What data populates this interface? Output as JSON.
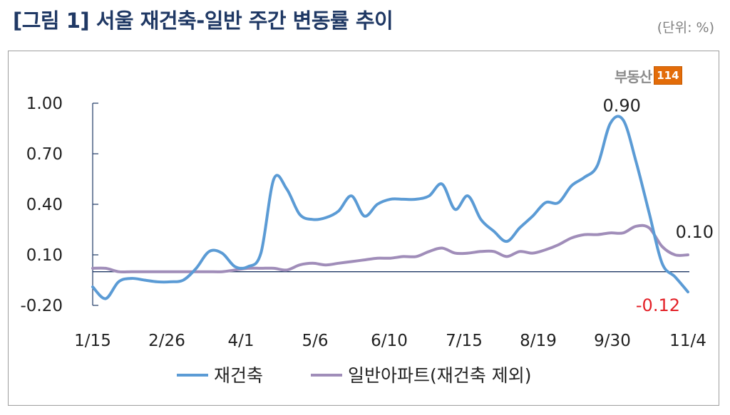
{
  "header": {
    "title": "[그림 1] 서울 재건축-일반 주간 변동률 추이",
    "unit": "(단위: %)"
  },
  "logo": {
    "text": "부동산",
    "number": "114"
  },
  "chart_data": {
    "type": "line",
    "ylim": [
      -0.2,
      1.0
    ],
    "y_ticks": [
      1.0,
      0.7,
      0.4,
      0.1,
      -0.2
    ],
    "y_tick_labels": [
      "1.00",
      "0.70",
      "0.40",
      "0.10",
      "-0.20"
    ],
    "x_tick_labels": [
      "1/15",
      "2/26",
      "4/1",
      "5/6",
      "6/10",
      "7/15",
      "8/19",
      "9/30",
      "11/4"
    ],
    "zero_line": 0,
    "legend_position": "bottom",
    "colors": {
      "rebuild": "#5b9bd5",
      "general": "#a08db9",
      "negative_label": "#e31f26",
      "axis": "#1f3864"
    },
    "series": [
      {
        "name": "재건축",
        "values": [
          -0.09,
          -0.16,
          -0.06,
          -0.04,
          -0.05,
          -0.06,
          -0.06,
          -0.05,
          0.02,
          0.12,
          0.11,
          0.03,
          0.03,
          0.11,
          0.55,
          0.49,
          0.34,
          0.31,
          0.32,
          0.36,
          0.45,
          0.33,
          0.4,
          0.43,
          0.43,
          0.43,
          0.45,
          0.52,
          0.37,
          0.45,
          0.31,
          0.24,
          0.18,
          0.26,
          0.33,
          0.41,
          0.41,
          0.51,
          0.56,
          0.63,
          0.88,
          0.9,
          0.65,
          0.35,
          0.05,
          -0.03,
          -0.12
        ]
      },
      {
        "name": "일반아파트(재건축 제외)",
        "values": [
          0.02,
          0.02,
          0.0,
          0.0,
          0.0,
          0.0,
          0.0,
          0.0,
          0.0,
          0.0,
          0.0,
          0.01,
          0.02,
          0.02,
          0.02,
          0.01,
          0.04,
          0.05,
          0.04,
          0.05,
          0.06,
          0.07,
          0.08,
          0.08,
          0.09,
          0.09,
          0.12,
          0.14,
          0.11,
          0.11,
          0.12,
          0.12,
          0.09,
          0.12,
          0.11,
          0.13,
          0.16,
          0.2,
          0.22,
          0.22,
          0.23,
          0.23,
          0.27,
          0.26,
          0.15,
          0.1,
          0.1
        ]
      }
    ],
    "annotations": [
      {
        "text": "0.90",
        "series": 0,
        "index": 41
      },
      {
        "text": "0.10",
        "series": 1,
        "index": 46
      },
      {
        "text": "-0.12",
        "series": 0,
        "index": 46
      }
    ]
  }
}
